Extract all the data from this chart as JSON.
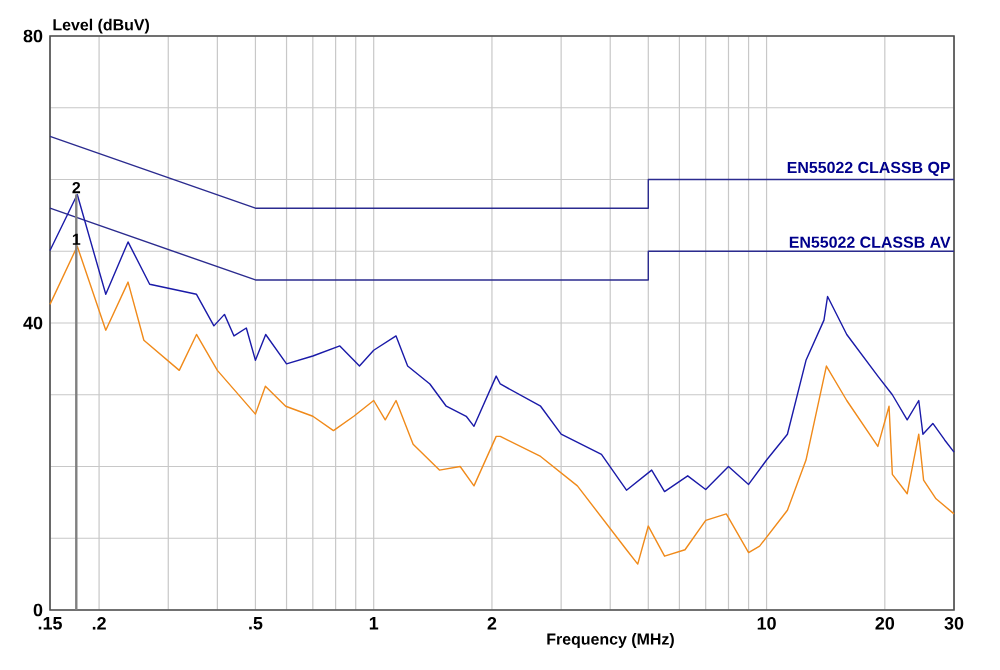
{
  "chart_data": {
    "type": "line",
    "xlabel": "Frequency (MHz)",
    "ylabel": "Level (dBuV)",
    "log": "x",
    "grid": true,
    "legend": false,
    "xlim": [
      0.15,
      30
    ],
    "ylim": [
      0,
      80
    ],
    "xticks": [
      {
        "value": 0.15,
        "label": ".15"
      },
      {
        "value": 0.2,
        "label": ".2"
      },
      {
        "value": 0.3,
        "label": null
      },
      {
        "value": 0.4,
        "label": null
      },
      {
        "value": 0.5,
        "label": ".5"
      },
      {
        "value": 0.6,
        "label": null
      },
      {
        "value": 0.7,
        "label": null
      },
      {
        "value": 0.8,
        "label": null
      },
      {
        "value": 0.9,
        "label": null
      },
      1,
      2,
      {
        "value": 3,
        "label": null
      },
      {
        "value": 4,
        "label": null
      },
      {
        "value": 5,
        "label": null
      },
      {
        "value": 6,
        "label": null
      },
      {
        "value": 7,
        "label": null
      },
      {
        "value": 8,
        "label": null
      },
      {
        "value": 9,
        "label": null
      },
      10,
      20,
      30
    ],
    "yticks": [
      0,
      {
        "value": 10,
        "label": null
      },
      {
        "value": 20,
        "label": null
      },
      {
        "value": 30,
        "label": null
      },
      40,
      {
        "value": 50,
        "label": null
      },
      {
        "value": 60,
        "label": null
      },
      {
        "value": 70,
        "label": null
      },
      80
    ],
    "series": [
      {
        "name": "EN55022 CLASSB QP",
        "color": "#2b2b8f",
        "x": [
          0.15,
          0.5,
          5,
          5,
          30
        ],
        "values": [
          66,
          56,
          56,
          60,
          60
        ]
      },
      {
        "name": "EN55022 CLASSB AV",
        "color": "#2b2b8f",
        "x": [
          0.15,
          0.5,
          5,
          5,
          30
        ],
        "values": [
          56,
          46,
          46,
          50,
          50
        ]
      },
      {
        "color": "#1a1aa8",
        "x": [
          0.15,
          0.176,
          0.208,
          0.237,
          0.269,
          0.354,
          0.392,
          0.417,
          0.441,
          0.474,
          0.5,
          0.531,
          0.6,
          0.7,
          0.82,
          0.92,
          1.0,
          1.14,
          1.22,
          1.39,
          1.53,
          1.72,
          1.8,
          2.05,
          2.1,
          2.66,
          3.0,
          3.8,
          4.4,
          5.1,
          5.5,
          6.3,
          7.0,
          8.0,
          9.0,
          10,
          11.3,
          12.6,
          14,
          14.3,
          16,
          19.2,
          20.9,
          22.8,
          24.4,
          25,
          26.5,
          28.4,
          30
        ],
        "values": [
          50.1,
          57.9,
          44,
          51.3,
          45.4,
          44,
          39.6,
          41.2,
          38.2,
          39.3,
          34.8,
          38.4,
          34.3,
          35.4,
          36.8,
          34,
          36.2,
          38.2,
          34,
          31.5,
          28.4,
          27,
          25.6,
          32.6,
          31.5,
          28.4,
          24.5,
          21.7,
          16.7,
          19.5,
          16.5,
          18.7,
          16.8,
          20,
          17.5,
          20.9,
          24.5,
          34.8,
          40.4,
          43.7,
          38.4,
          32.6,
          30,
          26.5,
          29.2,
          24.5,
          26,
          23.7,
          22
        ]
      },
      {
        "color": "#f08a1a",
        "x": [
          0.15,
          0.176,
          0.208,
          0.237,
          0.26,
          0.32,
          0.354,
          0.4,
          0.5,
          0.53,
          0.597,
          0.7,
          0.79,
          0.89,
          1.0,
          1.07,
          1.14,
          1.26,
          1.47,
          1.66,
          1.8,
          2.05,
          2.1,
          2.66,
          3.3,
          4.4,
          4.7,
          5.0,
          5.5,
          6.2,
          7.0,
          7.9,
          9.0,
          9.6,
          11.3,
          12.6,
          14.2,
          16,
          19.2,
          20.5,
          20.9,
          22.8,
          24.4,
          25.1,
          27,
          30
        ],
        "values": [
          42.6,
          50.7,
          39,
          45.7,
          37.6,
          33.4,
          38.4,
          33.4,
          27.3,
          31.2,
          28.4,
          27,
          25,
          27,
          29.2,
          26.5,
          29.2,
          23.1,
          19.5,
          20,
          17.3,
          24.2,
          24.2,
          21.4,
          17.3,
          8.4,
          6.4,
          11.7,
          7.5,
          8.4,
          12.5,
          13.4,
          8,
          8.9,
          13.9,
          20.9,
          34,
          29.2,
          22.8,
          28.4,
          18.9,
          16.2,
          24.5,
          18.1,
          15.5,
          13.4
        ]
      }
    ],
    "ref_lines": [
      {
        "axis": "x",
        "value": 0.175,
        "color": "#808080"
      }
    ],
    "annotations": [
      {
        "text": "1",
        "x": 0.175,
        "y": 50.7
      },
      {
        "text": "2",
        "x": 0.175,
        "y": 57.9
      }
    ]
  }
}
